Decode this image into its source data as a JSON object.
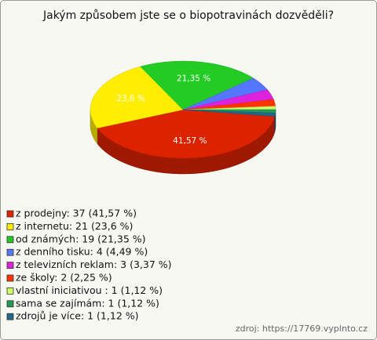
{
  "chart_data": {
    "type": "pie",
    "title": "Jakým způsobem jste se o biopotravinách dozvěděli?",
    "labels": [
      "z prodejny: 37 (41,57 %)",
      "z internetu: 21 (23,6 %)",
      "od známých: 19 (21,35 %)",
      "z denního tisku: 4 (4,49 %)",
      "z televizních reklam: 3 (3,37 %)",
      "ze školy: 2 (2,25 %)",
      "vlastní iniciativou : 1 (1,12 %)",
      "sama se zajímám: 1 (1,12 %)",
      "zdrojů je více: 1 (1,12 %)"
    ],
    "values": [
      41.57,
      23.6,
      21.35,
      4.49,
      3.37,
      2.25,
      1.12,
      1.12,
      1.12
    ],
    "value_labels": [
      "41,57 %",
      "23,6 %",
      "21,35 %",
      null,
      null,
      null,
      null,
      null,
      null
    ],
    "colors": [
      "#dd2200",
      "#ffee00",
      "#22cc22",
      "#5577ff",
      "#dd22dd",
      "#ff3300",
      "#ccff66",
      "#229955",
      "#226688"
    ],
    "source": "zdroj: https://17769.vyplnto.cz"
  }
}
